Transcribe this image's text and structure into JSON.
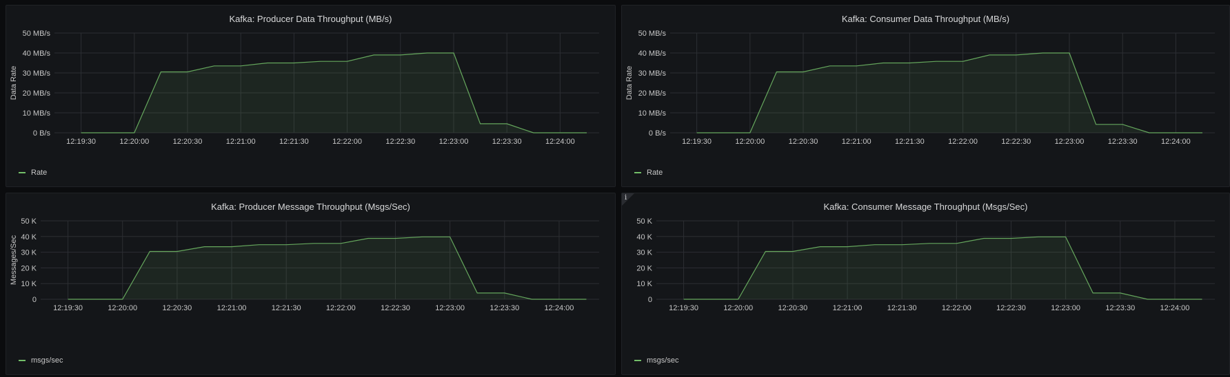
{
  "colors": {
    "series": "#73bf69",
    "grid": "#2c2e33",
    "text": "#c7c7c7",
    "panel_bg": "#141619"
  },
  "x_ticks": [
    "12:19:30",
    "12:20:00",
    "12:20:30",
    "12:21:00",
    "12:21:30",
    "12:22:00",
    "12:22:30",
    "12:23:00",
    "12:23:30",
    "12:24:00"
  ],
  "panels": [
    {
      "title": "Kafka: Producer Data Throughput (MB/s)",
      "ylabel": "Data Rate",
      "legend": "Rate",
      "info_icon": "",
      "chart_data": {
        "type": "area",
        "title": "Kafka: Producer Data Throughput (MB/s)",
        "xlabel": "",
        "ylabel": "Data Rate",
        "ylim": [
          0,
          50
        ],
        "y_ticks": [
          "0 B/s",
          "10 MB/s",
          "20 MB/s",
          "30 MB/s",
          "40 MB/s",
          "50 MB/s"
        ],
        "x_ticks": [
          "12:19:30",
          "12:20:00",
          "12:20:30",
          "12:21:00",
          "12:21:30",
          "12:22:00",
          "12:22:30",
          "12:23:00",
          "12:23:30",
          "12:24:00"
        ],
        "grid": true,
        "legend_placement": "bottom-left",
        "series": [
          {
            "name": "Rate",
            "x": [
              "12:19:30",
              "12:19:45",
              "12:20:00",
              "12:20:15",
              "12:20:30",
              "12:20:45",
              "12:21:00",
              "12:21:15",
              "12:21:30",
              "12:21:45",
              "12:22:00",
              "12:22:15",
              "12:22:30",
              "12:22:45",
              "12:23:00",
              "12:23:15",
              "12:23:30",
              "12:23:45",
              "12:24:00",
              "12:24:15"
            ],
            "values": [
              0,
              0,
              0,
              30.5,
              30.5,
              33.5,
              33.5,
              35,
              35,
              35.8,
              35.8,
              39,
              39,
              40,
              40,
              4.5,
              4.5,
              0,
              0,
              0
            ]
          }
        ]
      }
    },
    {
      "title": "Kafka: Consumer Data Throughput (MB/s)",
      "ylabel": "Data Rate",
      "legend": "Rate",
      "info_icon": "",
      "chart_data": {
        "type": "area",
        "title": "Kafka: Consumer Data Throughput (MB/s)",
        "xlabel": "",
        "ylabel": "Data Rate",
        "ylim": [
          0,
          50
        ],
        "y_ticks": [
          "0 B/s",
          "10 MB/s",
          "20 MB/s",
          "30 MB/s",
          "40 MB/s",
          "50 MB/s"
        ],
        "x_ticks": [
          "12:19:30",
          "12:20:00",
          "12:20:30",
          "12:21:00",
          "12:21:30",
          "12:22:00",
          "12:22:30",
          "12:23:00",
          "12:23:30",
          "12:24:00"
        ],
        "grid": true,
        "legend_placement": "bottom-left",
        "series": [
          {
            "name": "Rate",
            "x": [
              "12:19:30",
              "12:19:45",
              "12:20:00",
              "12:20:15",
              "12:20:30",
              "12:20:45",
              "12:21:00",
              "12:21:15",
              "12:21:30",
              "12:21:45",
              "12:22:00",
              "12:22:15",
              "12:22:30",
              "12:22:45",
              "12:23:00",
              "12:23:15",
              "12:23:30",
              "12:23:45",
              "12:24:00",
              "12:24:15"
            ],
            "values": [
              0,
              0,
              0,
              30.5,
              30.5,
              33.5,
              33.5,
              35,
              35,
              35.8,
              35.8,
              39,
              39,
              40,
              40,
              4.2,
              4.2,
              0,
              0,
              0
            ]
          }
        ]
      }
    },
    {
      "title": "Kafka: Producer Message Throughput (Msgs/Sec)",
      "ylabel": "Messages/Sec",
      "legend": "msgs/sec",
      "info_icon": "",
      "chart_data": {
        "type": "area",
        "title": "Kafka: Producer Message Throughput (Msgs/Sec)",
        "xlabel": "",
        "ylabel": "Messages/Sec",
        "ylim": [
          0,
          50
        ],
        "y_ticks": [
          "0",
          "10 K",
          "20 K",
          "30 K",
          "40 K",
          "50 K"
        ],
        "x_ticks": [
          "12:19:30",
          "12:20:00",
          "12:20:30",
          "12:21:00",
          "12:21:30",
          "12:22:00",
          "12:22:30",
          "12:23:00",
          "12:23:30",
          "12:24:00"
        ],
        "grid": true,
        "legend_placement": "bottom-left",
        "series": [
          {
            "name": "msgs/sec",
            "x": [
              "12:19:30",
              "12:19:45",
              "12:20:00",
              "12:20:15",
              "12:20:30",
              "12:20:45",
              "12:21:00",
              "12:21:15",
              "12:21:30",
              "12:21:45",
              "12:22:00",
              "12:22:15",
              "12:22:30",
              "12:22:45",
              "12:23:00",
              "12:23:15",
              "12:23:30",
              "12:23:45",
              "12:24:00",
              "12:24:15"
            ],
            "values": [
              0,
              0,
              0,
              30.5,
              30.5,
              33.5,
              33.5,
              34.8,
              34.8,
              35.6,
              35.6,
              38.8,
              38.8,
              39.8,
              39.8,
              4,
              4,
              0,
              0,
              0
            ]
          }
        ]
      }
    },
    {
      "title": "Kafka: Consumer Message Throughput (Msgs/Sec)",
      "ylabel": "",
      "legend": "msgs/sec",
      "info_icon": "i",
      "chart_data": {
        "type": "area",
        "title": "Kafka: Consumer Message Throughput (Msgs/Sec)",
        "xlabel": "",
        "ylabel": "",
        "ylim": [
          0,
          50
        ],
        "y_ticks": [
          "0",
          "10 K",
          "20 K",
          "30 K",
          "40 K",
          "50 K"
        ],
        "x_ticks": [
          "12:19:30",
          "12:20:00",
          "12:20:30",
          "12:21:00",
          "12:21:30",
          "12:22:00",
          "12:22:30",
          "12:23:00",
          "12:23:30",
          "12:24:00"
        ],
        "grid": true,
        "legend_placement": "bottom-left",
        "series": [
          {
            "name": "msgs/sec",
            "x": [
              "12:19:30",
              "12:19:45",
              "12:20:00",
              "12:20:15",
              "12:20:30",
              "12:20:45",
              "12:21:00",
              "12:21:15",
              "12:21:30",
              "12:21:45",
              "12:22:00",
              "12:22:15",
              "12:22:30",
              "12:22:45",
              "12:23:00",
              "12:23:15",
              "12:23:30",
              "12:23:45",
              "12:24:00",
              "12:24:15"
            ],
            "values": [
              0,
              0,
              0,
              30.5,
              30.5,
              33.5,
              33.5,
              34.8,
              34.8,
              35.6,
              35.6,
              38.8,
              38.8,
              39.8,
              39.8,
              4,
              4,
              0,
              0,
              0
            ]
          }
        ]
      }
    }
  ]
}
